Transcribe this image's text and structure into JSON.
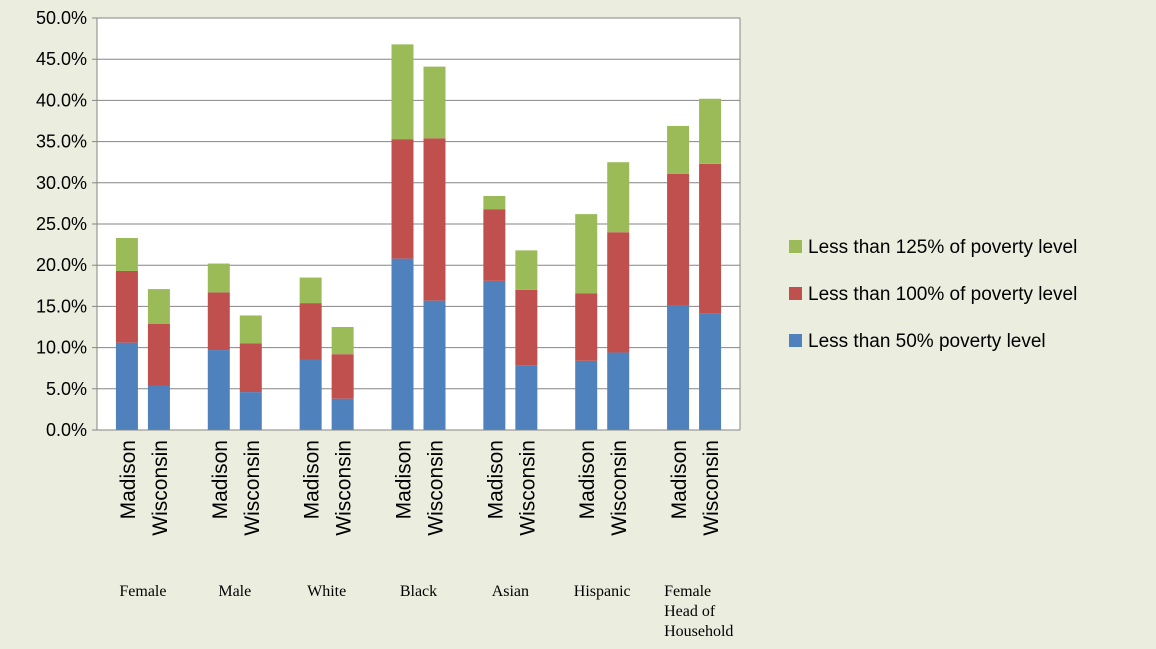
{
  "chart_data": {
    "type": "bar",
    "stacked": true,
    "ylim": [
      0,
      0.5
    ],
    "yticks": [
      "0.0%",
      "5.0%",
      "10.0%",
      "15.0%",
      "20.0%",
      "25.0%",
      "30.0%",
      "35.0%",
      "40.0%",
      "45.0%",
      "50.0%"
    ],
    "grid": true,
    "legend_position": "right",
    "groups": [
      {
        "label": "Female"
      },
      {
        "label": "Male"
      },
      {
        "label": "White"
      },
      {
        "label": "Black"
      },
      {
        "label": "Asian"
      },
      {
        "label": "Hispanic"
      },
      {
        "label": "Female Head of Household",
        "lines": [
          "Female",
          "Head of",
          "Household"
        ]
      }
    ],
    "categories": [
      "Madison",
      "Wisconsin",
      "Madison",
      "Wisconsin",
      "Madison",
      "Wisconsin",
      "Madison",
      "Wisconsin",
      "Madison",
      "Wisconsin",
      "Madison",
      "Wisconsin",
      "Madison",
      "Wisconsin"
    ],
    "series": [
      {
        "name": "Less than 50% poverty level",
        "color": "#4F81BD",
        "values": [
          0.106,
          0.054,
          0.097,
          0.046,
          0.085,
          0.038,
          0.208,
          0.157,
          0.181,
          0.078,
          0.084,
          0.094,
          0.151,
          0.141
        ]
      },
      {
        "name": "Less than 100% of poverty level",
        "color": "#C0504D",
        "values": [
          0.087,
          0.075,
          0.07,
          0.059,
          0.069,
          0.054,
          0.145,
          0.197,
          0.087,
          0.092,
          0.082,
          0.146,
          0.16,
          0.182
        ]
      },
      {
        "name": "Less than 125% of poverty level",
        "color": "#9BBB59",
        "values": [
          0.04,
          0.042,
          0.035,
          0.034,
          0.031,
          0.033,
          0.115,
          0.087,
          0.016,
          0.048,
          0.096,
          0.085,
          0.058,
          0.079
        ]
      }
    ],
    "legend_order": [
      2,
      1,
      0
    ]
  }
}
